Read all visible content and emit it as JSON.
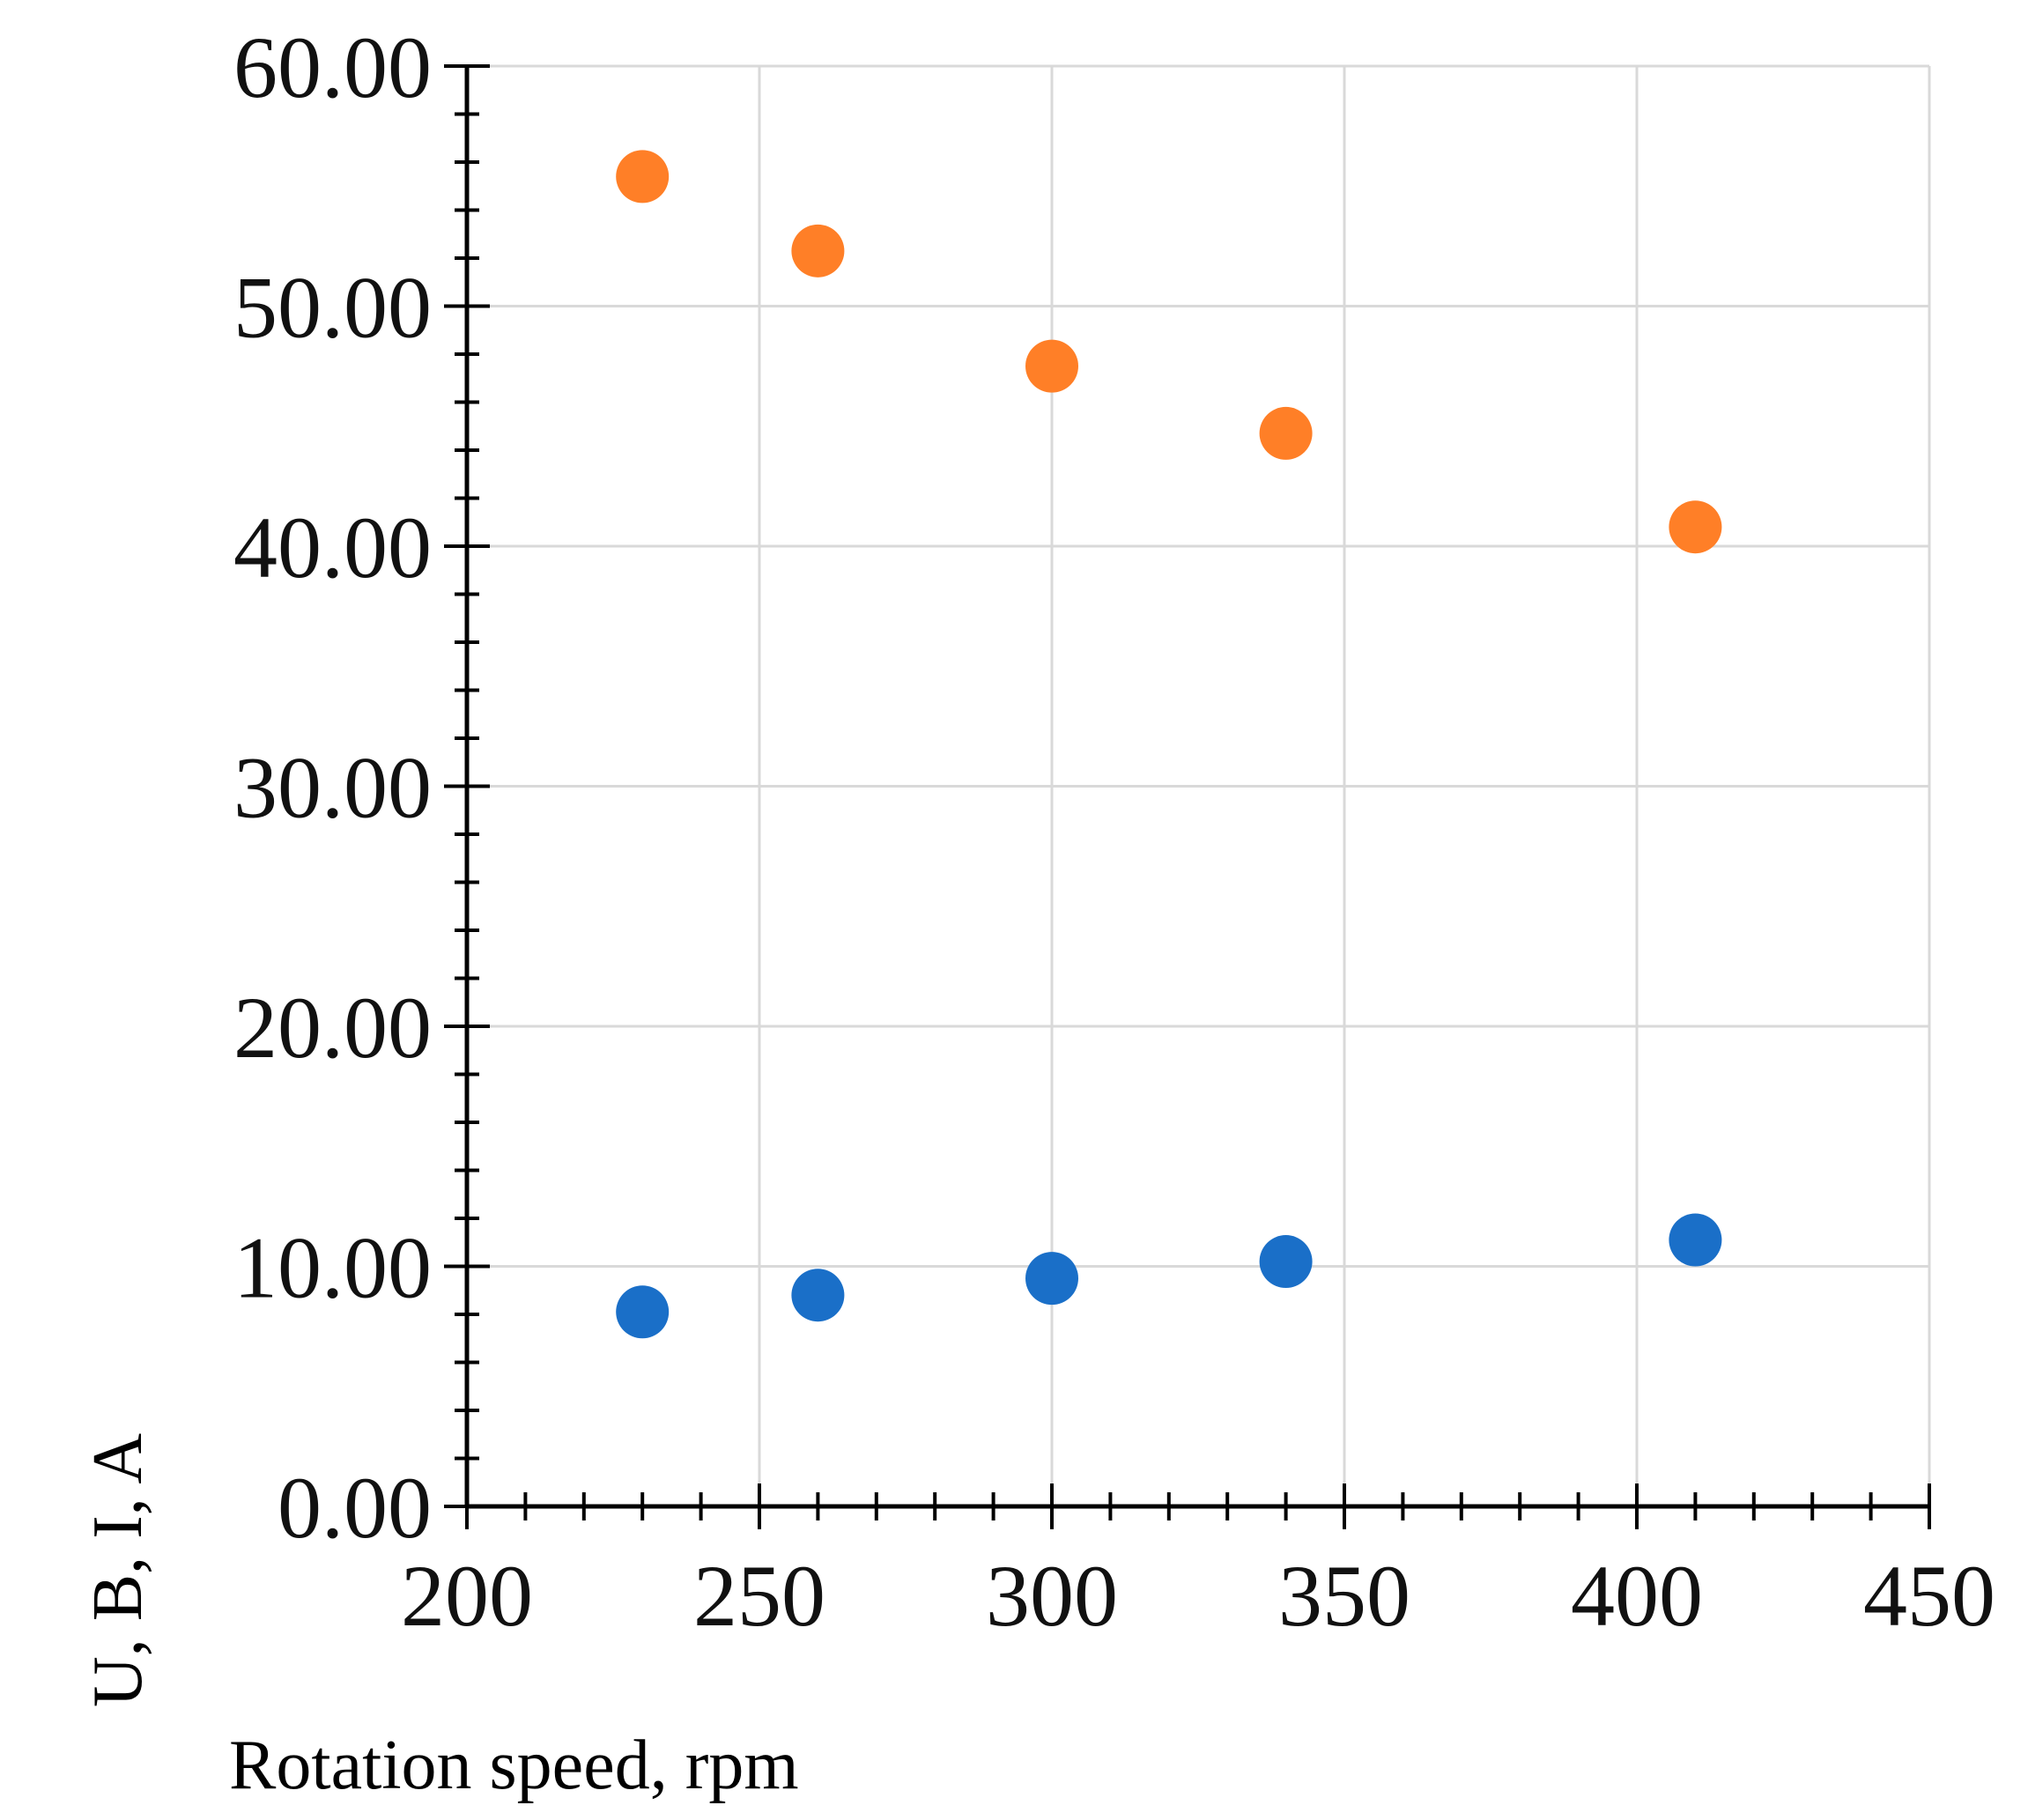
{
  "chart_data": {
    "type": "scatter",
    "title": "",
    "xlabel": "Rotation speed, rpm",
    "ylabel": "U, B, I, A",
    "xlim": [
      200,
      450
    ],
    "ylim": [
      0,
      60
    ],
    "x_ticks": [
      "200",
      "250",
      "300",
      "350",
      "400",
      "450"
    ],
    "y_ticks": [
      "0.00",
      "10.00",
      "20.00",
      "30.00",
      "40.00",
      "50.00",
      "60.00"
    ],
    "grid": true,
    "legend": "none",
    "series": [
      {
        "color": "#ff7f27",
        "points": [
          {
            "x": 230,
            "y": 55.4
          },
          {
            "x": 260,
            "y": 52.3
          },
          {
            "x": 300,
            "y": 47.5
          },
          {
            "x": 340,
            "y": 44.7
          },
          {
            "x": 410,
            "y": 40.8
          }
        ]
      },
      {
        "color": "#1a6fc8",
        "points": [
          {
            "x": 230,
            "y": 8.1
          },
          {
            "x": 260,
            "y": 8.8
          },
          {
            "x": 300,
            "y": 9.5
          },
          {
            "x": 340,
            "y": 10.2
          },
          {
            "x": 410,
            "y": 11.1
          }
        ]
      }
    ]
  }
}
